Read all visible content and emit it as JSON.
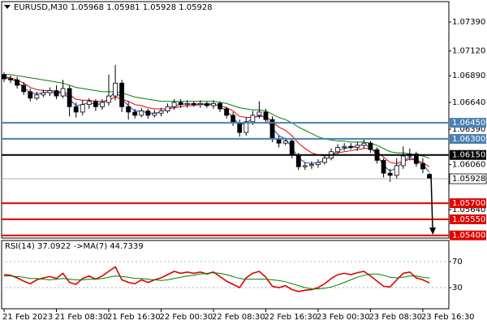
{
  "chart_data": [
    {
      "type": "candlestick",
      "title": "EURUSD,M30  1.05968 1.05981 1.05928 1.05928",
      "categories": [
        "21 Feb 2023",
        null,
        null,
        null,
        null,
        null,
        null,
        null,
        "21 Feb 08:30",
        null,
        null,
        null,
        null,
        null,
        null,
        null,
        "21 Feb 16:30",
        null,
        null,
        null,
        null,
        null,
        null,
        null,
        "22 Feb 00:30",
        null,
        null,
        null,
        null,
        null,
        null,
        null,
        "22 Feb 08:30",
        null,
        null,
        null,
        null,
        null,
        null,
        null,
        "22 Feb 16:30",
        null,
        null,
        null,
        null,
        null,
        null,
        null,
        "23 Feb 00:30",
        null,
        null,
        null,
        null,
        null,
        null,
        null,
        "23 Feb 08:30",
        null,
        null,
        null,
        null,
        null,
        null,
        null,
        "23 Feb 16:30",
        null
      ],
      "open": [
        1.069,
        1.0686,
        1.0685,
        1.068,
        1.0674,
        1.0668,
        1.0671,
        1.0673,
        1.0675,
        1.067,
        1.0677,
        1.066,
        1.0655,
        1.0662,
        1.0665,
        1.066,
        1.0664,
        1.067,
        1.0682,
        1.066,
        1.0655,
        1.0652,
        1.0656,
        1.0652,
        1.0654,
        1.0656,
        1.066,
        1.0664,
        1.0662,
        1.0663,
        1.0662,
        1.0663,
        1.0661,
        1.0663,
        1.0658,
        1.0652,
        1.0645,
        1.0636,
        1.0646,
        1.0652,
        1.0655,
        1.0648,
        1.063,
        1.0626,
        1.0628,
        1.0615,
        1.0604,
        1.0605,
        1.0606,
        1.0608,
        1.0612,
        1.0618,
        1.0622,
        1.0623,
        1.0622,
        1.0624,
        1.0626,
        1.062,
        1.061,
        1.0598,
        1.0596,
        1.0605,
        1.0614,
        1.0616,
        1.0607,
        1.05968
      ],
      "high": [
        1.0692,
        1.0689,
        1.0688,
        1.0683,
        1.0677,
        1.0674,
        1.0676,
        1.0678,
        1.068,
        1.0685,
        1.068,
        1.0664,
        1.0666,
        1.0668,
        1.0667,
        1.0667,
        1.069,
        1.0699,
        1.0685,
        1.0665,
        1.0658,
        1.0659,
        1.0658,
        1.0657,
        1.0659,
        1.0663,
        1.0667,
        1.0667,
        1.0666,
        1.0665,
        1.0666,
        1.0665,
        1.0666,
        1.0665,
        1.066,
        1.0655,
        1.0648,
        1.065,
        1.0656,
        1.0665,
        1.0658,
        1.0651,
        1.0633,
        1.0631,
        1.063,
        1.0617,
        1.0608,
        1.0609,
        1.0611,
        1.0614,
        1.0621,
        1.0625,
        1.0626,
        1.0626,
        1.0627,
        1.063,
        1.0628,
        1.0622,
        1.0612,
        1.0602,
        1.0612,
        1.0623,
        1.0621,
        1.0618,
        1.0612,
        1.05981
      ],
      "low": [
        1.0683,
        1.0682,
        1.0677,
        1.0671,
        1.0665,
        1.0666,
        1.0669,
        1.067,
        1.0667,
        1.0668,
        1.0651,
        1.065,
        1.0652,
        1.0658,
        1.0656,
        1.0657,
        1.0661,
        1.0666,
        1.0655,
        1.0648,
        1.0649,
        1.065,
        1.0649,
        1.065,
        1.0651,
        1.0654,
        1.0657,
        1.0659,
        1.0659,
        1.066,
        1.0659,
        1.0659,
        1.0658,
        1.0655,
        1.0649,
        1.0642,
        1.0632,
        1.0633,
        1.0643,
        1.0649,
        1.0645,
        1.0627,
        1.0622,
        1.0624,
        1.0612,
        1.0601,
        1.0601,
        1.0602,
        1.0603,
        1.0606,
        1.061,
        1.0616,
        1.0619,
        1.062,
        1.0619,
        1.0621,
        1.0617,
        1.0607,
        1.0594,
        1.059,
        1.0593,
        1.0602,
        1.061,
        1.0604,
        1.0598,
        1.05928
      ],
      "close": [
        1.0686,
        1.0685,
        1.068,
        1.0674,
        1.0668,
        1.0671,
        1.0673,
        1.0675,
        1.067,
        1.0677,
        1.066,
        1.0655,
        1.0662,
        1.0665,
        1.066,
        1.0664,
        1.067,
        1.0682,
        1.066,
        1.0655,
        1.0652,
        1.0656,
        1.0652,
        1.0654,
        1.0656,
        1.066,
        1.0664,
        1.0662,
        1.0663,
        1.0662,
        1.0663,
        1.0661,
        1.0663,
        1.0658,
        1.0652,
        1.0645,
        1.0636,
        1.0646,
        1.0652,
        1.0655,
        1.0648,
        1.063,
        1.0626,
        1.0628,
        1.0615,
        1.0604,
        1.0605,
        1.0606,
        1.0608,
        1.0612,
        1.0618,
        1.0622,
        1.0623,
        1.0622,
        1.0624,
        1.0626,
        1.062,
        1.061,
        1.0598,
        1.0596,
        1.0605,
        1.0614,
        1.0616,
        1.0607,
        1.0602,
        1.05928
      ],
      "up_color": "#ffffff",
      "down_color": "#000000",
      "lines": [
        {
          "color": "#008000",
          "values": [
            1.069,
            1.069,
            1.0689,
            1.0688,
            1.0687,
            1.0686,
            1.0685,
            1.0684,
            1.0683,
            1.0682,
            1.068,
            1.0678,
            1.0677,
            1.0676,
            1.0675,
            1.0674,
            1.0674,
            1.0674,
            1.0673,
            1.0671,
            1.0669,
            1.0668,
            1.0667,
            1.0666,
            1.0665,
            1.0665,
            1.0665,
            1.0665,
            1.0665,
            1.0665,
            1.0665,
            1.0665,
            1.0665,
            1.0664,
            1.0663,
            1.0661,
            1.0659,
            1.0658,
            1.0657,
            1.0657,
            1.0656,
            1.0653,
            1.065,
            1.0648,
            1.0645,
            1.0641,
            1.0638,
            1.0635,
            1.0632,
            1.063,
            1.0629,
            1.0628,
            1.0628,
            1.0627,
            1.0627,
            1.0627,
            1.0626,
            1.0624,
            1.0621,
            1.0618,
            1.0617,
            1.0617,
            1.0616,
            1.0615,
            1.0614,
            1.0612
          ]
        },
        {
          "color": "#e00000",
          "values": [
            1.0688,
            1.0687,
            1.0685,
            1.0682,
            1.0678,
            1.0676,
            1.0675,
            1.0675,
            1.0674,
            1.0674,
            1.0671,
            1.0667,
            1.0666,
            1.0666,
            1.0665,
            1.0665,
            1.0666,
            1.0669,
            1.0667,
            1.0665,
            1.0662,
            1.0661,
            1.0659,
            1.0658,
            1.0658,
            1.0658,
            1.0659,
            1.066,
            1.0661,
            1.0661,
            1.0662,
            1.0662,
            1.0662,
            1.0661,
            1.0659,
            1.0656,
            1.0651,
            1.065,
            1.065,
            1.0651,
            1.0651,
            1.0646,
            1.0641,
            1.0638,
            1.0633,
            1.0626,
            1.0621,
            1.0617,
            1.0615,
            1.0614,
            1.0615,
            1.0617,
            1.0618,
            1.0619,
            1.062,
            1.0621,
            1.0621,
            1.0618,
            1.0613,
            1.0608,
            1.0607,
            1.0609,
            1.0611,
            1.061,
            1.0608,
            1.0604
          ]
        },
        {
          "color": "#1f3fbf",
          "values": [
            1.0687,
            1.0686,
            1.0683,
            1.0678,
            1.0673,
            1.0672,
            1.0673,
            1.0674,
            1.0672,
            1.0674,
            1.0667,
            1.0661,
            1.0662,
            1.0664,
            1.0662,
            1.0663,
            1.0667,
            1.0675,
            1.0667,
            1.0661,
            1.0656,
            1.0656,
            1.0654,
            1.0654,
            1.0655,
            1.0658,
            1.0661,
            1.0662,
            1.0663,
            1.0662,
            1.0663,
            1.0662,
            1.0663,
            1.066,
            1.0656,
            1.065,
            1.0643,
            1.0645,
            1.0649,
            1.0652,
            1.065,
            1.064,
            1.0633,
            1.063,
            1.0622,
            1.0612,
            1.0608,
            1.0607,
            1.0608,
            1.061,
            1.0615,
            1.0619,
            1.0621,
            1.0622,
            1.0623,
            1.0625,
            1.0622,
            1.0615,
            1.0605,
            1.06,
            1.0603,
            1.0609,
            1.0613,
            1.061,
            1.0606,
            1.0599
          ]
        }
      ],
      "ylim": [
        1.05375,
        1.0758
      ],
      "yticks": [
        {
          "value": 1.0739,
          "label": "1.07390"
        },
        {
          "value": 1.0712,
          "label": "1.07120"
        },
        {
          "value": 1.0689,
          "label": "1.06890"
        },
        {
          "value": 1.0664,
          "label": "1.06640"
        },
        {
          "value": 1.0639,
          "label": "1.06390"
        },
        {
          "value": 1.0606,
          "label": "1.06060"
        },
        {
          "value": 1.0564,
          "label": "1.05640"
        }
      ],
      "levels": [
        {
          "value": 1.0645,
          "label": "1.06450",
          "color": "#4a7fb0"
        },
        {
          "value": 1.063,
          "label": "1.06300",
          "color": "#4a7fb0"
        },
        {
          "value": 1.0615,
          "label": "1.06150",
          "color": "#000000"
        },
        {
          "value": 1.057,
          "label": "1.05700",
          "color": "#e00000"
        },
        {
          "value": 1.0555,
          "label": "1.05550",
          "color": "#e00000"
        },
        {
          "value": 1.054,
          "label": "1.05400",
          "color": "#e00000"
        }
      ],
      "current_price": {
        "value": 1.05928,
        "label": "1.05928",
        "color": "#b0b0b0"
      }
    },
    {
      "type": "line",
      "title": "RSI(14) 37.0922 ->MA(7) 44.7339",
      "series": [
        {
          "color": "#e00000",
          "values": [
            50,
            49,
            45,
            40,
            36,
            42,
            45,
            47,
            44,
            52,
            38,
            35,
            44,
            48,
            43,
            48,
            55,
            62,
            42,
            38,
            36,
            42,
            38,
            42,
            45,
            50,
            55,
            52,
            54,
            52,
            54,
            51,
            54,
            47,
            40,
            35,
            30,
            45,
            52,
            55,
            46,
            32,
            30,
            33,
            27,
            24,
            26,
            27,
            30,
            36,
            44,
            50,
            52,
            50,
            53,
            55,
            48,
            40,
            32,
            31,
            42,
            52,
            54,
            45,
            42,
            37.0922
          ]
        },
        {
          "color": "#008000",
          "values": [
            48,
            48,
            47,
            46,
            44,
            44,
            43,
            42,
            43,
            44,
            43,
            42,
            42,
            43,
            43,
            44,
            46,
            48,
            47,
            46,
            44,
            44,
            43,
            42,
            41,
            42,
            44,
            46,
            48,
            49,
            51,
            52,
            53,
            52,
            50,
            47,
            44,
            43,
            43,
            43,
            43,
            42,
            41,
            39,
            36,
            33,
            30,
            28,
            28,
            29,
            31,
            34,
            38,
            42,
            46,
            49,
            51,
            51,
            49,
            46,
            45,
            46,
            48,
            48,
            46,
            44.7339
          ]
        }
      ],
      "ylim": [
        0,
        100
      ],
      "yticks": [
        70,
        30
      ],
      "grid": true
    }
  ]
}
